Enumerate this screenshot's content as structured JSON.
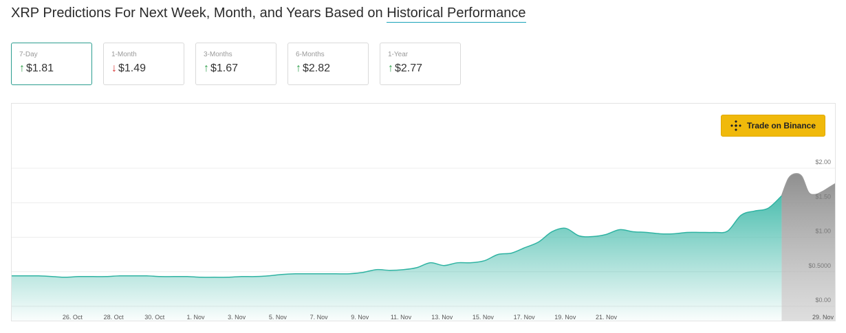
{
  "header": {
    "title_prefix": "XRP Predictions For Next Week, Month, and Years Based on",
    "title_link": "Historical Performance"
  },
  "predictions": [
    {
      "label": "7-Day",
      "direction": "up",
      "value": "$1.81",
      "active": true
    },
    {
      "label": "1-Month",
      "direction": "down",
      "value": "$1.49",
      "active": false
    },
    {
      "label": "3-Months",
      "direction": "up",
      "value": "$1.67",
      "active": false
    },
    {
      "label": "6-Months",
      "direction": "up",
      "value": "$2.82",
      "active": false
    },
    {
      "label": "1-Year",
      "direction": "up",
      "value": "$2.77",
      "active": false
    }
  ],
  "trade_button": {
    "label": "Trade on Binance",
    "icon": "binance-logo-icon"
  },
  "colors": {
    "accent": "#2a9d8f",
    "area_top": "#5cc6b8",
    "line": "#2fb3a2",
    "forecast": "#9a9a9a",
    "binance": "#f0b90b",
    "up": "#2e9e4a",
    "down": "#d93434"
  },
  "chart_data": {
    "type": "area",
    "x_ticks": [
      "26. Oct",
      "28. Oct",
      "30. Oct",
      "1. Nov",
      "3. Nov",
      "5. Nov",
      "7. Nov",
      "9. Nov",
      "11. Nov",
      "13. Nov",
      "15. Nov",
      "17. Nov",
      "19. Nov",
      "21. Nov",
      "29. Nov"
    ],
    "y_ticks": [
      "$0.00",
      "$0.5000",
      "$1.00",
      "$1.50",
      "$2.00"
    ],
    "ylim": [
      0,
      2.0
    ],
    "grid": true,
    "series": [
      {
        "kind": "historical",
        "points": [
          [
            -3,
            0.44
          ],
          [
            -2,
            0.44
          ],
          [
            -1,
            0.44
          ],
          [
            0,
            0.43
          ],
          [
            1,
            0.42
          ],
          [
            2,
            0.43
          ],
          [
            3,
            0.43
          ],
          [
            4,
            0.43
          ],
          [
            5,
            0.44
          ],
          [
            6,
            0.44
          ],
          [
            7,
            0.44
          ],
          [
            8,
            0.43
          ],
          [
            9,
            0.43
          ],
          [
            10,
            0.43
          ],
          [
            11,
            0.42
          ],
          [
            12,
            0.42
          ],
          [
            13,
            0.42
          ],
          [
            14,
            0.43
          ],
          [
            15,
            0.43
          ],
          [
            16,
            0.44
          ],
          [
            17,
            0.46
          ],
          [
            18,
            0.47
          ],
          [
            19,
            0.47
          ],
          [
            20,
            0.47
          ],
          [
            21,
            0.47
          ],
          [
            22,
            0.47
          ],
          [
            23,
            0.49
          ],
          [
            24,
            0.53
          ],
          [
            25,
            0.52
          ],
          [
            26,
            0.53
          ],
          [
            27,
            0.56
          ],
          [
            28,
            0.63
          ],
          [
            29,
            0.59
          ],
          [
            30,
            0.63
          ],
          [
            31,
            0.63
          ],
          [
            32,
            0.66
          ],
          [
            33,
            0.75
          ],
          [
            34,
            0.77
          ],
          [
            35,
            0.85
          ],
          [
            36,
            0.93
          ],
          [
            37,
            1.08
          ],
          [
            38,
            1.13
          ],
          [
            39,
            1.02
          ],
          [
            40,
            1.01
          ],
          [
            41,
            1.04
          ],
          [
            42,
            1.11
          ],
          [
            43,
            1.08
          ],
          [
            44,
            1.07
          ],
          [
            45,
            1.05
          ],
          [
            46,
            1.05
          ],
          [
            47,
            1.07
          ],
          [
            48,
            1.07
          ],
          [
            49,
            1.07
          ],
          [
            50,
            1.09
          ],
          [
            51,
            1.32
          ],
          [
            52,
            1.38
          ],
          [
            53,
            1.42
          ],
          [
            54,
            1.6
          ]
        ]
      },
      {
        "kind": "forecast",
        "points": [
          [
            54,
            1.6
          ],
          [
            54.5,
            1.85
          ],
          [
            55,
            1.92
          ],
          [
            55.5,
            1.88
          ],
          [
            56,
            1.65
          ],
          [
            56.5,
            1.62
          ],
          [
            57,
            1.66
          ],
          [
            57.5,
            1.72
          ],
          [
            58,
            1.78
          ]
        ]
      }
    ]
  }
}
